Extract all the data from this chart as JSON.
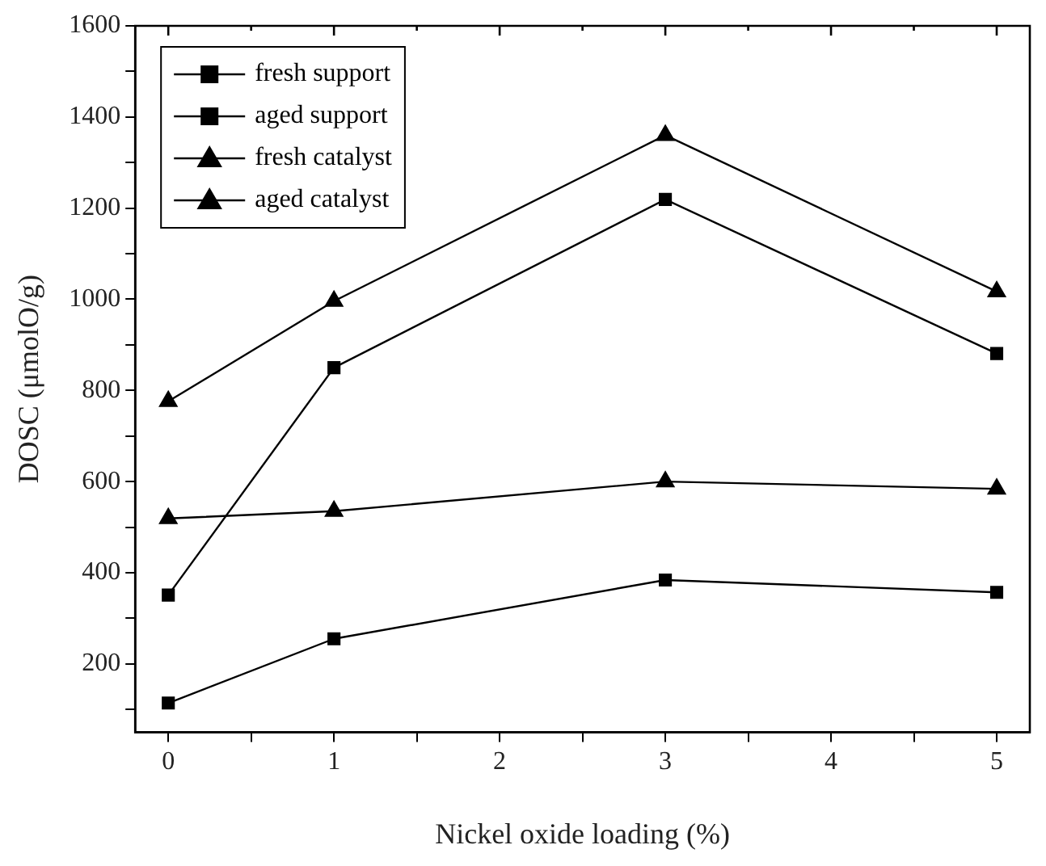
{
  "chart_data": {
    "type": "line",
    "xlabel": "Nickel oxide loading (%)",
    "ylabel": "DOSC (μmolO/g)",
    "x": [
      0,
      1,
      3,
      5
    ],
    "xlim": [
      -0.2,
      5.2
    ],
    "xticks": [
      0,
      {
        "value": 0.5,
        "label": null
      },
      1,
      {
        "value": 1.5,
        "label": null
      },
      2,
      {
        "value": 2.5,
        "label": null
      },
      3,
      {
        "value": 3.5,
        "label": null
      },
      4,
      {
        "value": 4.5,
        "label": null
      },
      5
    ],
    "ylim": [
      50,
      1600
    ],
    "yticks": [
      {
        "value": 100,
        "label": null
      },
      200,
      {
        "value": 300,
        "label": null
      },
      400,
      {
        "value": 500,
        "label": null
      },
      600,
      {
        "value": 700,
        "label": null
      },
      800,
      {
        "value": 900,
        "label": null
      },
      1000,
      {
        "value": 1100,
        "label": null
      },
      1200,
      {
        "value": 1300,
        "label": null
      },
      1400,
      {
        "value": 1500,
        "label": null
      },
      1600
    ],
    "grid": false,
    "legend": "top left",
    "line_style": "solid",
    "series": [
      {
        "name": "fresh support",
        "color": "#000000",
        "marker": "square",
        "values": [
          351,
          850,
          1219,
          881
        ]
      },
      {
        "name": "aged support",
        "color": "#000000",
        "marker": "square",
        "values": [
          114,
          255,
          384,
          357
        ]
      },
      {
        "name": "fresh catalyst",
        "color": "#000000",
        "marker": "triangle",
        "values": [
          776,
          996,
          1360,
          1017
        ]
      },
      {
        "name": "aged catalyst",
        "color": "#000000",
        "marker": "triangle",
        "values": [
          519,
          535,
          600,
          584
        ]
      }
    ]
  }
}
